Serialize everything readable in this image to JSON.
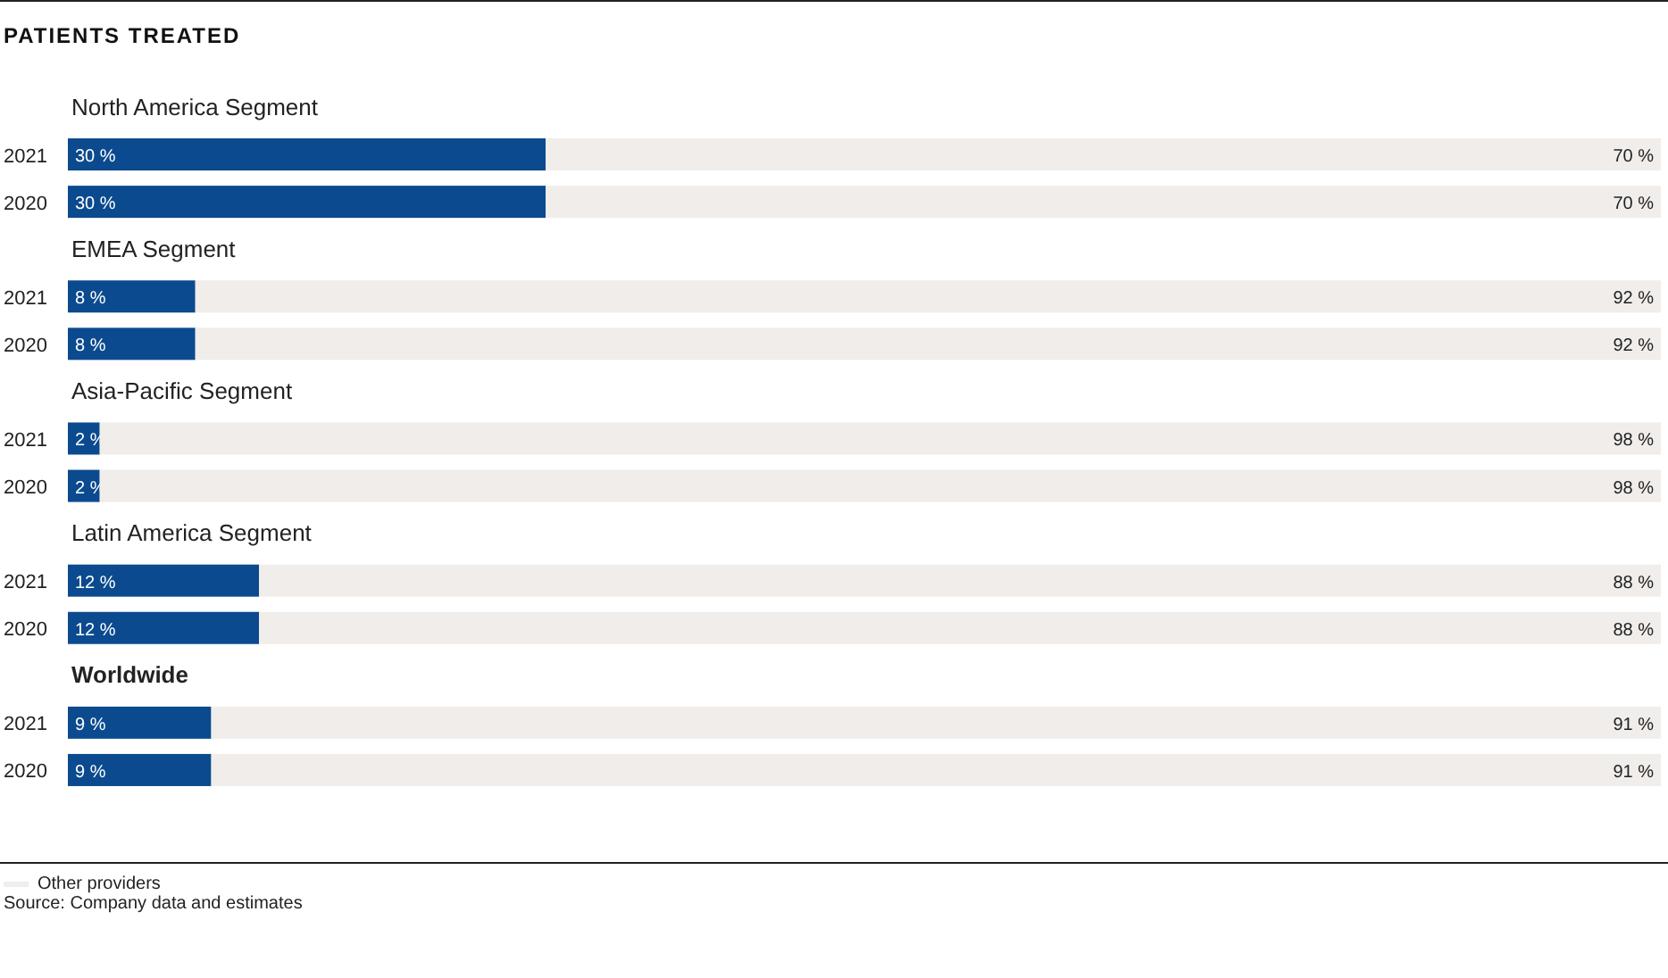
{
  "chart_data": {
    "type": "bar",
    "orientation": "horizontal",
    "stacked": true,
    "title": "PATIENTS TREATED",
    "categories": [
      "North America Segment",
      "2021",
      "2020",
      "EMEA Segment",
      "2021",
      "2020",
      "Asia-Pacific Segment",
      "2021",
      "2020",
      "Latin America Segment",
      "2021",
      "2020",
      "Worldwide",
      "2021",
      "2020"
    ],
    "series": [
      {
        "color": "#0b4a8e",
        "values": [
          null,
          30,
          30,
          null,
          8,
          8,
          null,
          2,
          2,
          null,
          12,
          12,
          null,
          9,
          9
        ],
        "value_labels": [
          null,
          "30 %",
          "30 %",
          null,
          "8 %",
          "8 %",
          null,
          "2 %",
          "2 %",
          null,
          "12 %",
          "12 %",
          null,
          "9 %",
          "9 %"
        ]
      },
      {
        "name": "Other providers",
        "color": "#f0edea",
        "values": [
          null,
          70,
          70,
          null,
          92,
          92,
          null,
          98,
          98,
          null,
          88,
          88,
          null,
          91,
          91
        ],
        "value_labels": [
          null,
          "70 %",
          "70 %",
          null,
          "92 %",
          "92 %",
          null,
          "98 %",
          "98 %",
          null,
          "88 %",
          "88 %",
          null,
          "91 %",
          "91 %"
        ]
      }
    ],
    "xlim": [
      0,
      100
    ],
    "tick_labels": "y",
    "legend": "bottom left",
    "annotations": [
      "Source: Company data and estimates"
    ]
  }
}
